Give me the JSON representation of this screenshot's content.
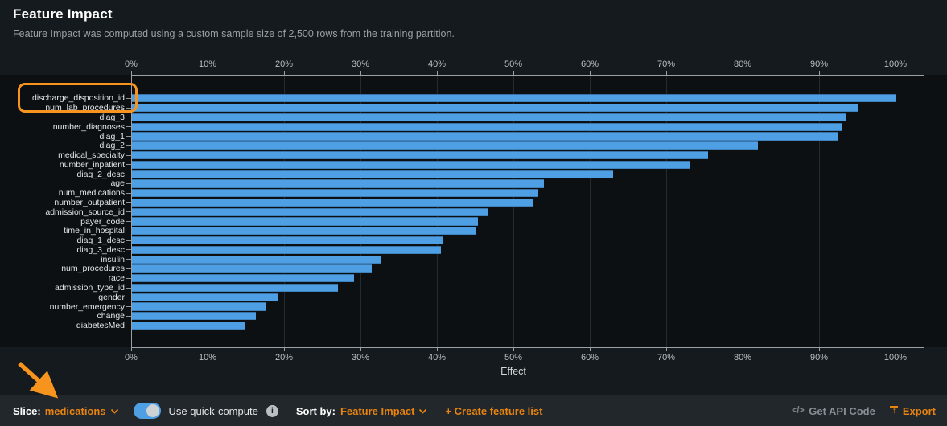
{
  "header": {
    "title": "Feature Impact",
    "subtitle": "Feature Impact was computed using a custom sample size of 2,500 rows from the training partition."
  },
  "chart_data": {
    "type": "bar",
    "orientation": "horizontal",
    "title": "Feature Impact",
    "xlabel": "Effect",
    "ylabel": "",
    "xlim": [
      0,
      100
    ],
    "grid": true,
    "bar_color": "#4f9fe4",
    "x_ticks": [
      "0%",
      "10%",
      "20%",
      "30%",
      "40%",
      "50%",
      "60%",
      "70%",
      "80%",
      "90%",
      "100%"
    ],
    "categories": [
      "discharge_disposition_id",
      "num_lab_procedures",
      "diag_3",
      "number_diagnoses",
      "diag_1",
      "diag_2",
      "medical_specialty",
      "number_inpatient",
      "diag_2_desc",
      "age",
      "num_medications",
      "number_outpatient",
      "admission_source_id",
      "payer_code",
      "time_in_hospital",
      "diag_1_desc",
      "diag_3_desc",
      "insulin",
      "num_procedures",
      "race",
      "admission_type_id",
      "gender",
      "number_emergency",
      "change",
      "diabetesMed"
    ],
    "values": [
      100,
      95,
      93.5,
      93,
      92.5,
      82,
      75.5,
      73,
      63,
      54,
      53.3,
      52.5,
      46.7,
      45.4,
      45,
      40.7,
      40.5,
      32.6,
      31.5,
      29.2,
      27,
      19.3,
      17.7,
      16.3,
      14.9
    ]
  },
  "annotations": {
    "highlighted_feature": "discharge_disposition_id",
    "arrow_points_to": "slice-dropdown",
    "color": "#f7941e"
  },
  "toolbar": {
    "slice_label": "Slice:",
    "slice_value": "medications",
    "quick_compute_label": "Use quick-compute",
    "quick_compute_on": true,
    "info_glyph": "i",
    "sort_by_label": "Sort by:",
    "sort_by_value": "Feature Impact",
    "create_feature_list_label": "+ Create feature list",
    "code_icon_glyph": "</>",
    "get_api_code_label": "Get API Code",
    "export_label": "Export",
    "export_arrow_glyph": "↑"
  },
  "colors": {
    "accent_orange": "#f7941e",
    "text_orange": "#e8830f",
    "bar_blue": "#4f9fe4",
    "page_bg": "#141a1d",
    "plot_bg": "#0c1013",
    "toolbar_bg": "#22272b"
  }
}
